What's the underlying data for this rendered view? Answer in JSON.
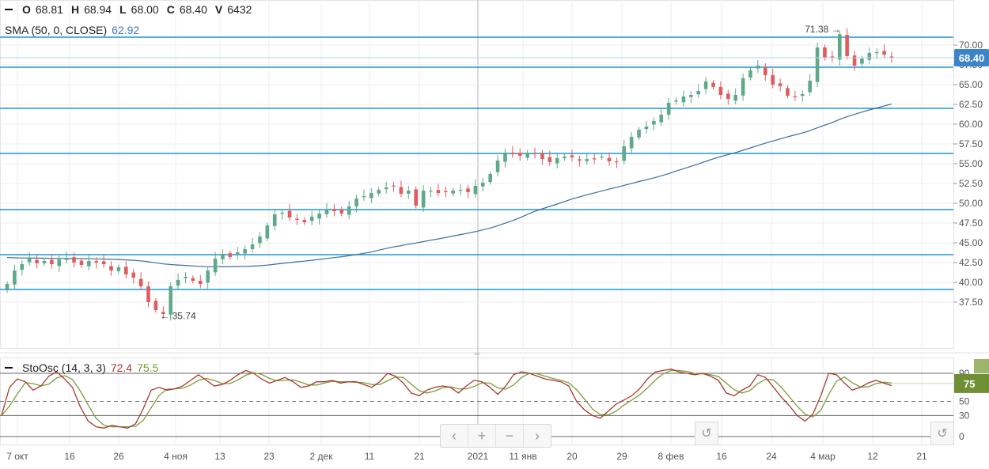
{
  "legend": {
    "o_label": "O",
    "o_value": "68.81",
    "h_label": "H",
    "h_value": "68.94",
    "l_label": "L",
    "l_value": "68.00",
    "c_label": "C",
    "c_value": "68.40",
    "v_label": "V",
    "v_value": "6432",
    "sma_label": "SMA (50, 0, CLOSE)",
    "sma_value": "62.92",
    "stoch_label": "StoOsc (14, 3, 3)",
    "stoch_k_value": "72.4",
    "stoch_d_value": "75.5"
  },
  "controls": {
    "prev_icon": "‹",
    "zoom_in_icon": "+",
    "zoom_out_icon": "−",
    "next_icon": "›",
    "reset_icon": "↺"
  },
  "colors": {
    "up": "#5ea987",
    "down": "#e05c5c",
    "sma": "#3c6c9e",
    "level": "#1e96d2",
    "stoch_k": "#a8392f",
    "stoch_d": "#7a9e3a",
    "price_badge": "#3b84c7",
    "stoch_badge": "#6f8f35"
  },
  "chart_data": [
    {
      "type": "candlestick",
      "x_labels": [
        "7 окт",
        "16",
        "26",
        "4 ноя",
        "13",
        "23",
        "2 дек",
        "11",
        "21",
        "2021",
        "11 янв",
        "20",
        "29",
        "8 фев",
        "16",
        "24",
        "4 мар",
        "12",
        "21"
      ],
      "y_ticks": [
        "70.00",
        "67.50",
        "65.00",
        "62.50",
        "60.00",
        "57.50",
        "55.00",
        "52.50",
        "50.00",
        "47.50",
        "45.00",
        "42.50",
        "40.00",
        "37.50"
      ],
      "ylim": [
        33.8,
        74.4
      ],
      "last_price": "68.40",
      "annotations": [
        {
          "text": "71.38",
          "type": "max"
        },
        {
          "text": "35.74",
          "type": "min"
        }
      ],
      "horizontal_levels": [
        71.0,
        67.2,
        62.0,
        56.3,
        49.2,
        43.5,
        39.1
      ],
      "close": [
        39.8,
        41.5,
        42.3,
        43.0,
        42.4,
        42.7,
        42.3,
        42.9,
        43.1,
        42.5,
        42.2,
        42.7,
        42.5,
        42.3,
        41.5,
        41.9,
        41.0,
        40.6,
        39.5,
        37.5,
        36.5,
        36.0,
        39.5,
        40.3,
        40.7,
        40.2,
        39.8,
        41.5,
        43.0,
        43.6,
        43.2,
        43.8,
        44.2,
        44.8,
        45.8,
        47.2,
        48.6,
        48.8,
        48.2,
        47.9,
        47.6,
        48.3,
        48.7,
        49.2,
        49.0,
        48.7,
        49.6,
        50.6,
        50.9,
        51.3,
        51.7,
        52.0,
        52.2,
        51.2,
        51.6,
        49.7,
        51.6,
        51.6,
        51.3,
        51.4,
        51.6,
        51.7,
        51.4,
        52.2,
        52.6,
        53.7,
        55.4,
        56.4,
        56.2,
        56.0,
        56.4,
        56.2,
        55.6,
        55.2,
        55.7,
        55.9,
        55.8,
        55.4,
        55.6,
        55.6,
        55.9,
        55.3,
        55.2,
        57.2,
        58.4,
        59.3,
        59.7,
        60.4,
        61.2,
        62.7,
        63.0,
        63.5,
        63.7,
        64.2,
        65.4,
        64.7,
        63.7,
        63.2,
        63.7,
        65.8,
        66.8,
        67.4,
        66.2,
        65.0,
        64.8,
        63.6,
        63.5,
        63.8,
        65.5,
        69.7,
        68.4,
        68.4,
        71.38,
        68.6,
        67.4,
        68.3,
        69.0,
        69.1,
        68.8,
        68.4
      ],
      "sma": {
        "name": "SMA (50, 0, CLOSE)",
        "last": 62.92
      },
      "stochastic": {
        "name": "StoOsc (14, 3, 3)",
        "k_last": 72.4,
        "d_last": 75.5,
        "y_ticks": [
          "90",
          "75",
          "50",
          "30",
          "0"
        ],
        "k_values": [
          30,
          70,
          82,
          78,
          66,
          72,
          86,
          92,
          82,
          70,
          42,
          22,
          14,
          12,
          16,
          14,
          12,
          18,
          40,
          66,
          70,
          66,
          68,
          72,
          80,
          88,
          80,
          72,
          74,
          80,
          88,
          94,
          90,
          82,
          76,
          80,
          84,
          78,
          70,
          72,
          78,
          78,
          80,
          76,
          78,
          78,
          74,
          70,
          78,
          90,
          86,
          76,
          62,
          58,
          66,
          70,
          72,
          70,
          62,
          72,
          80,
          78,
          70,
          60,
          72,
          88,
          92,
          90,
          86,
          82,
          80,
          78,
          72,
          50,
          38,
          30,
          26,
          36,
          46,
          52,
          58,
          68,
          82,
          92,
          94,
          96,
          92,
          90,
          88,
          90,
          86,
          80,
          62,
          58,
          66,
          72,
          88,
          84,
          70,
          56,
          44,
          30,
          22,
          32,
          58,
          90,
          88,
          76,
          66,
          70,
          76,
          80,
          76,
          72.4
        ]
      }
    }
  ]
}
